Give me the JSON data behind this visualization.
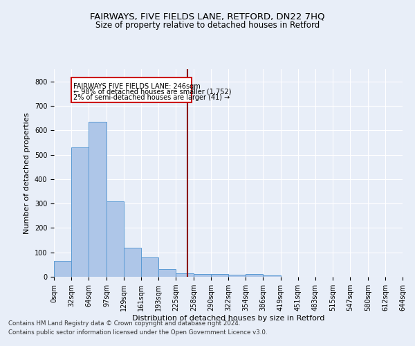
{
  "title": "FAIRWAYS, FIVE FIELDS LANE, RETFORD, DN22 7HQ",
  "subtitle": "Size of property relative to detached houses in Retford",
  "xlabel": "Distribution of detached houses by size in Retford",
  "ylabel": "Number of detached properties",
  "footer_line1": "Contains HM Land Registry data © Crown copyright and database right 2024.",
  "footer_line2": "Contains public sector information licensed under the Open Government Licence v3.0.",
  "bin_edges": [
    0,
    32,
    64,
    97,
    129,
    161,
    193,
    225,
    258,
    290,
    322,
    354,
    386,
    419,
    451,
    483,
    515,
    547,
    580,
    612,
    644
  ],
  "bin_labels": [
    "0sqm",
    "32sqm",
    "64sqm",
    "97sqm",
    "129sqm",
    "161sqm",
    "193sqm",
    "225sqm",
    "258sqm",
    "290sqm",
    "322sqm",
    "354sqm",
    "386sqm",
    "419sqm",
    "451sqm",
    "483sqm",
    "515sqm",
    "547sqm",
    "580sqm",
    "612sqm",
    "644sqm"
  ],
  "bar_heights": [
    65,
    530,
    635,
    310,
    120,
    78,
    30,
    15,
    12,
    10,
    8,
    10,
    5,
    0,
    0,
    0,
    0,
    0,
    0,
    0
  ],
  "bar_color": "#aec6e8",
  "bar_edge_color": "#5a9ad4",
  "property_value": 246,
  "vline_color": "#8b0000",
  "annotation_text_line1": "FAIRWAYS FIVE FIELDS LANE: 246sqm",
  "annotation_text_line2": "← 98% of detached houses are smaller (1,752)",
  "annotation_text_line3": "2% of semi-detached houses are larger (41) →",
  "annotation_box_color": "#ffffff",
  "annotation_box_edge_color": "#cc0000",
  "ylim": [
    0,
    850
  ],
  "yticks": [
    0,
    100,
    200,
    300,
    400,
    500,
    600,
    700,
    800
  ],
  "bg_color": "#e8eef8",
  "plot_bg_color": "#e8eef8",
  "grid_color": "#ffffff",
  "title_fontsize": 9.5,
  "subtitle_fontsize": 8.5,
  "axis_label_fontsize": 8,
  "tick_fontsize": 7
}
